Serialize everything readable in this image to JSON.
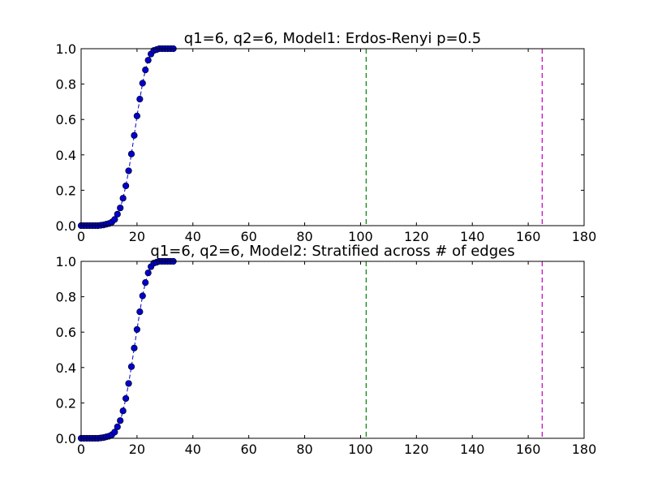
{
  "chart_data": [
    {
      "type": "scatter",
      "title": "q1=6, q2=6, Model1: Erdos-Renyi p=0.5",
      "xlabel": "",
      "ylabel": "",
      "xlim": [
        0,
        180
      ],
      "ylim": [
        0,
        1.0
      ],
      "xticks": [
        "0",
        "20",
        "40",
        "60",
        "80",
        "100",
        "120",
        "140",
        "160",
        "180"
      ],
      "yticks": [
        "0.0",
        "0.2",
        "0.4",
        "0.6",
        "0.8",
        "1.0"
      ],
      "grid": false,
      "series": [
        {
          "color": "#0000cc",
          "marker": "circle",
          "line": "dashed",
          "x": [
            0,
            1,
            2,
            3,
            4,
            5,
            6,
            7,
            8,
            9,
            10,
            11,
            12,
            13,
            14,
            15,
            16,
            17,
            18,
            19,
            20,
            21,
            22,
            23,
            24,
            25,
            26,
            27,
            28,
            29,
            30,
            31,
            32,
            33
          ],
          "y": [
            0,
            0,
            0,
            0,
            0,
            0,
            0,
            0.002,
            0.004,
            0.008,
            0.012,
            0.02,
            0.035,
            0.065,
            0.1,
            0.155,
            0.225,
            0.31,
            0.405,
            0.51,
            0.62,
            0.715,
            0.805,
            0.88,
            0.935,
            0.97,
            0.99,
            0.995,
            1,
            1,
            1,
            1,
            1,
            1
          ]
        }
      ],
      "vlines": [
        {
          "x": 102,
          "color": "#008000",
          "style": "dashed"
        },
        {
          "x": 165,
          "color": "#bf00bf",
          "style": "dashed"
        }
      ]
    },
    {
      "type": "scatter",
      "title": "q1=6, q2=6, Model2: Stratified across # of edges",
      "xlabel": "",
      "ylabel": "",
      "xlim": [
        0,
        180
      ],
      "ylim": [
        0,
        1.0
      ],
      "xticks": [
        "0",
        "20",
        "40",
        "60",
        "80",
        "100",
        "120",
        "140",
        "160",
        "180"
      ],
      "yticks": [
        "0.0",
        "0.2",
        "0.4",
        "0.6",
        "0.8",
        "1.0"
      ],
      "grid": false,
      "series": [
        {
          "color": "#0000cc",
          "marker": "circle",
          "line": "dashed",
          "x": [
            0,
            1,
            2,
            3,
            4,
            5,
            6,
            7,
            8,
            9,
            10,
            11,
            12,
            13,
            14,
            15,
            16,
            17,
            18,
            19,
            20,
            21,
            22,
            23,
            24,
            25,
            26,
            27,
            28,
            29,
            30,
            31,
            32,
            33
          ],
          "y": [
            0,
            0,
            0,
            0,
            0,
            0,
            0,
            0.002,
            0.004,
            0.008,
            0.012,
            0.02,
            0.035,
            0.065,
            0.1,
            0.155,
            0.225,
            0.31,
            0.405,
            0.51,
            0.615,
            0.715,
            0.805,
            0.88,
            0.935,
            0.97,
            0.99,
            0.995,
            1,
            1,
            1,
            1,
            1,
            1
          ]
        }
      ],
      "vlines": [
        {
          "x": 102,
          "color": "#008000",
          "style": "dashed"
        },
        {
          "x": 165,
          "color": "#bf00bf",
          "style": "dashed"
        }
      ]
    }
  ]
}
